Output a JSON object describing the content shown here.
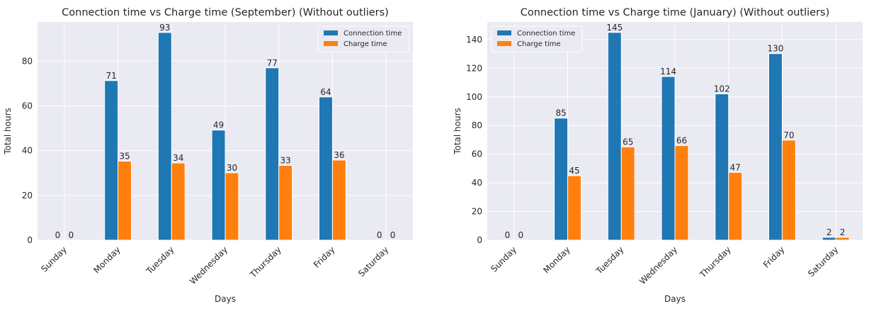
{
  "chart_data": [
    {
      "type": "bar",
      "title": "Connection time vs Charge time (September) (Without outliers)",
      "xlabel": "Days",
      "ylabel": "Total hours",
      "categories": [
        "Sunday",
        "Monday",
        "Tuesday",
        "Wednesday",
        "Thursday",
        "Friday",
        "Saturday"
      ],
      "series": [
        {
          "name": "Connection time",
          "color": "#1f77b4",
          "values": [
            0,
            71.3,
            92.8,
            49.2,
            77.0,
            64.0,
            0
          ],
          "labels": [
            "0",
            "71",
            "93",
            "49",
            "77",
            "64",
            "0"
          ]
        },
        {
          "name": "Charge time",
          "color": "#ff7f0e",
          "values": [
            0,
            35.3,
            34.5,
            30.1,
            33.4,
            35.8,
            0
          ],
          "labels": [
            "0",
            "35",
            "34",
            "30",
            "33",
            "36",
            "0"
          ]
        }
      ],
      "ylim": [
        0,
        97.5
      ],
      "yticks": [
        0,
        20,
        40,
        60,
        80
      ],
      "ytick_labels": [
        "0",
        "20",
        "40",
        "60",
        "80"
      ],
      "grid": true,
      "legend": "top-right"
    },
    {
      "type": "bar",
      "title": "Connection time vs Charge time (January) (Without outliers)",
      "xlabel": "Days",
      "ylabel": "Total hours",
      "categories": [
        "Sunday",
        "Monday",
        "Tuesday",
        "Wednesday",
        "Thursday",
        "Friday",
        "Saturday"
      ],
      "series": [
        {
          "name": "Connection time",
          "color": "#1f77b4",
          "values": [
            0,
            85.2,
            145.0,
            114.2,
            102.1,
            130.2,
            2.0
          ],
          "labels": [
            "0",
            "85",
            "145",
            "114",
            "102",
            "130",
            "2"
          ]
        },
        {
          "name": "Charge time",
          "color": "#ff7f0e",
          "values": [
            0,
            45.0,
            65.1,
            66.0,
            47.3,
            69.8,
            2.0
          ],
          "labels": [
            "0",
            "45",
            "65",
            "66",
            "47",
            "70",
            "2"
          ]
        }
      ],
      "ylim": [
        0,
        152.3
      ],
      "yticks": [
        0,
        20,
        40,
        60,
        80,
        100,
        120,
        140
      ],
      "ytick_labels": [
        "0",
        "20",
        "40",
        "60",
        "80",
        "100",
        "120",
        "140"
      ],
      "grid": true,
      "legend": "top-left"
    }
  ]
}
